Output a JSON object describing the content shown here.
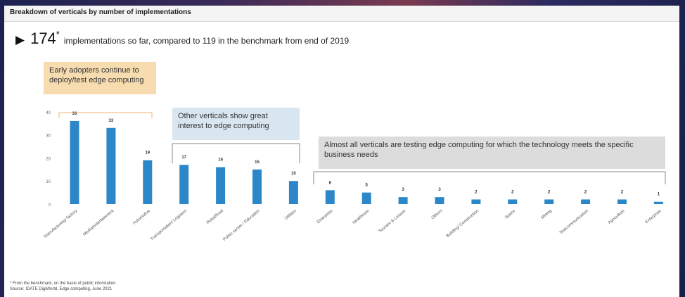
{
  "header": {
    "title": "Breakdown of verticals by number of implementations"
  },
  "headline": {
    "count": "174",
    "star": "*",
    "text": "implementations so far, compared to 119 in the benchmark from end of 2019"
  },
  "callouts": {
    "early": "Early adopters continue to deploy/test edge computing",
    "other": "Other verticals show great interest to edge computing",
    "almost": "Almost all verticals are testing edge computing for which the technology meets the specific business needs"
  },
  "colors": {
    "bar": "#2b87c8",
    "bracket": "#f0b46a",
    "bracket_gray": "#888888"
  },
  "chart_data": {
    "type": "bar",
    "categories": [
      "Manufacturing/ factory",
      "Media/entertainment",
      "Automotive",
      "Transportation/ Logistics",
      "Retail/food",
      "Public sector / Education",
      "Utilities",
      "Enterprise",
      "Healthcare",
      "Tourism & Leisure",
      "Others",
      "Building/ Construction",
      "Space",
      "Mining",
      "Telecommunication",
      "Agriculture",
      "Enterprise"
    ],
    "values": [
      36,
      33,
      19,
      17,
      16,
      15,
      10,
      6,
      5,
      3,
      3,
      2,
      2,
      2,
      2,
      2,
      1
    ],
    "data_labels": [
      "36",
      "33",
      "19",
      "17",
      "16",
      "15",
      "10",
      "6",
      "5",
      "3",
      "3",
      "2",
      "2",
      "2",
      "2",
      "2",
      "1"
    ],
    "yticks": [
      "0",
      "10",
      "20",
      "30",
      "40"
    ],
    "ylim": [
      0,
      40
    ],
    "grid": false
  },
  "footnote": {
    "line1": "* From the benchmark, on the basis of public information",
    "line2": "Source: IDATE DigiWorld, Edge computing, June 2021"
  }
}
